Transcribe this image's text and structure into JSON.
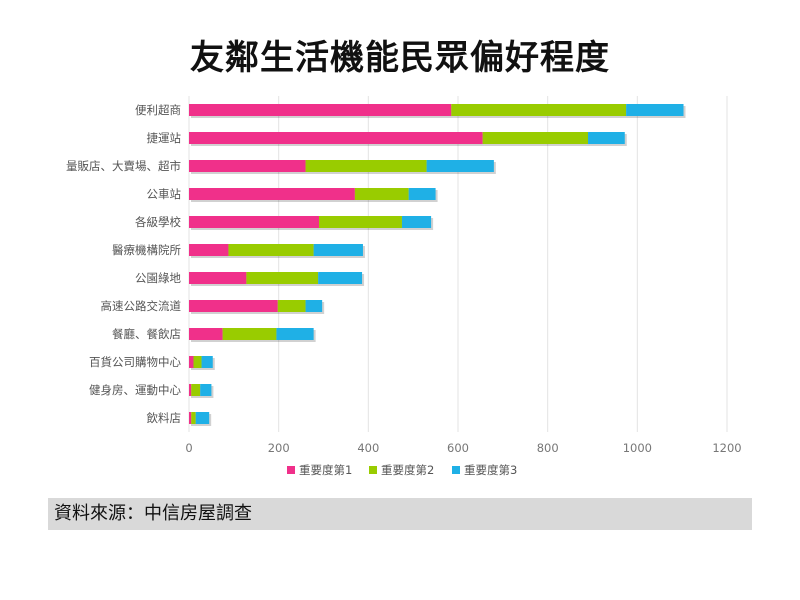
{
  "chart_data": {
    "type": "bar",
    "orientation": "horizontal",
    "stacked": true,
    "title": "友鄰生活機能民眾偏好程度",
    "categories": [
      "便利超商",
      "捷運站",
      "量販店、大賣場、超市",
      "公車站",
      "各級學校",
      "醫療機構院所",
      "公園綠地",
      "高速公路交流道",
      "餐廳、餐飲店",
      "百貨公司購物中心",
      "健身房、運動中心",
      "飲料店"
    ],
    "series": [
      {
        "name": "重要度第1",
        "color": "#f0308a",
        "values": [
          585,
          655,
          260,
          370,
          290,
          88,
          128,
          198,
          75,
          10,
          5,
          5
        ]
      },
      {
        "name": "重要度第2",
        "color": "#99cc00",
        "values": [
          390,
          235,
          270,
          120,
          185,
          190,
          160,
          62,
          120,
          18,
          20,
          10
        ]
      },
      {
        "name": "重要度第3",
        "color": "#1fb0e6",
        "values": [
          128,
          82,
          150,
          60,
          65,
          110,
          98,
          37,
          83,
          25,
          25,
          30
        ]
      }
    ],
    "xlim": [
      0,
      1200
    ],
    "xticks": [
      0,
      200,
      400,
      600,
      800,
      1000,
      1200
    ],
    "legend_position": "bottom",
    "grid": true
  },
  "source_text": "資料來源：中信房屋調查"
}
